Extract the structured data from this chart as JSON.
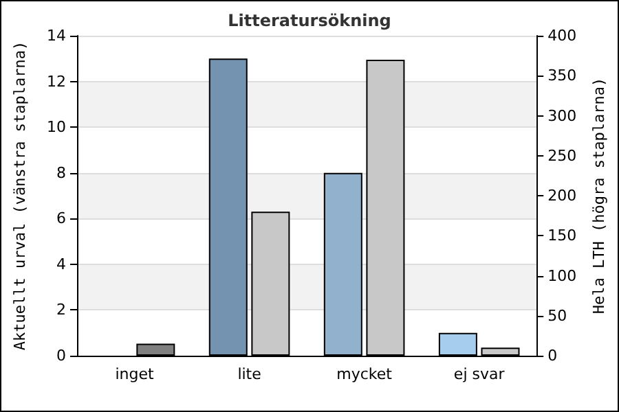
{
  "chart_data": {
    "type": "bar",
    "title": "Litteratursökning",
    "ylabel": "Aktuellt urval (vänstra staplarna)",
    "y2label": "Hela LTH (högra staplarna)",
    "categories": [
      "inget",
      "lite",
      "mycket",
      "ej svar"
    ],
    "series": [
      {
        "values": [
          0,
          13,
          8,
          1
        ],
        "colors": [
          "#7393b0",
          "#7393b0",
          "#91b1cc",
          "#a7cdee"
        ]
      },
      {
        "values": [
          15,
          180,
          370,
          10
        ],
        "colors": [
          "#808080",
          "#c8c8c8",
          "#c8c8c8",
          "#c8c8c8"
        ],
        "axis": "y2"
      }
    ],
    "ylim": [
      0,
      14
    ],
    "yticks": [
      0,
      2,
      4,
      6,
      8,
      10,
      12,
      14
    ],
    "y2lim": [
      0,
      400
    ],
    "y2ticks": [
      0,
      50,
      100,
      150,
      200,
      250,
      300,
      350,
      400
    ],
    "grid": "y"
  }
}
